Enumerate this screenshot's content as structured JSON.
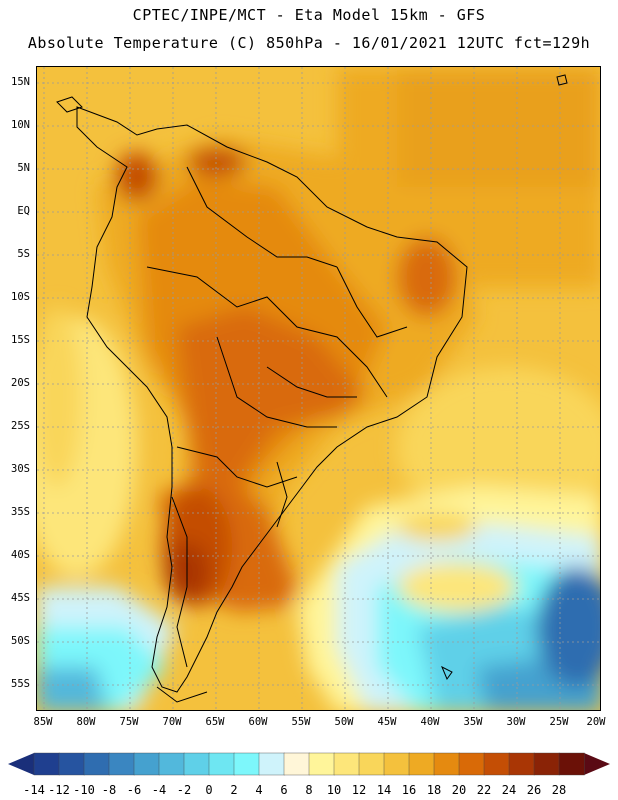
{
  "header": {
    "line1": "CPTEC/INPE/MCT -  Eta Model 15km - GFS",
    "line2": "Absolute Temperature (C) 850hPa - 16/01/2021 12UTC fct=129h"
  },
  "map": {
    "lat_labels": [
      "15N",
      "10N",
      "5N",
      "EQ",
      "5S",
      "10S",
      "15S",
      "20S",
      "25S",
      "30S",
      "35S",
      "40S",
      "45S",
      "50S",
      "55S"
    ],
    "lon_labels": [
      "85W",
      "80W",
      "75W",
      "70W",
      "65W",
      "60W",
      "55W",
      "50W",
      "45W",
      "40W",
      "35W",
      "30W",
      "25W",
      "20W"
    ]
  },
  "colorbar": {
    "labels": [
      "-14",
      "-12",
      "-10",
      "-8",
      "-6",
      "-4",
      "-2",
      "0",
      "2",
      "4",
      "6",
      "8",
      "10",
      "12",
      "14",
      "16",
      "18",
      "20",
      "22",
      "24",
      "26",
      "28"
    ],
    "colors": [
      "#1f3f8f",
      "#2654a0",
      "#2f6db0",
      "#3a86c1",
      "#45a1cf",
      "#52b8dc",
      "#5fd0e8",
      "#6ee6f2",
      "#7df7fb",
      "#cff3fb",
      "#fff6d8",
      "#fff59a",
      "#fde67a",
      "#f9d65a",
      "#f4c13d",
      "#eeaa23",
      "#e58a10",
      "#d96a07",
      "#c44e05",
      "#a93605",
      "#8a2306",
      "#6b1107"
    ],
    "low_color": "#1a2f7a",
    "high_color": "#5a0a14"
  }
}
